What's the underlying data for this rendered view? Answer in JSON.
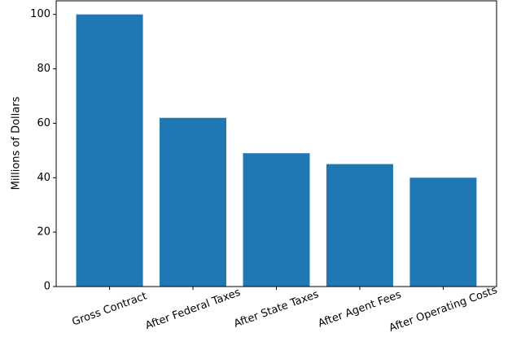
{
  "chart_data": {
    "type": "bar",
    "y_label": "Millions of Dollars",
    "categories": [
      "Gross Contract",
      "After Federal Taxes",
      "After State Taxes",
      "After Agent Fees",
      "After Operating Costs"
    ],
    "values": [
      100,
      62,
      49,
      45,
      40
    ],
    "color": "#1f77b4",
    "ylim": [
      0,
      105
    ],
    "yticks": [
      0,
      20,
      40,
      60,
      80,
      100
    ],
    "grid": false
  }
}
